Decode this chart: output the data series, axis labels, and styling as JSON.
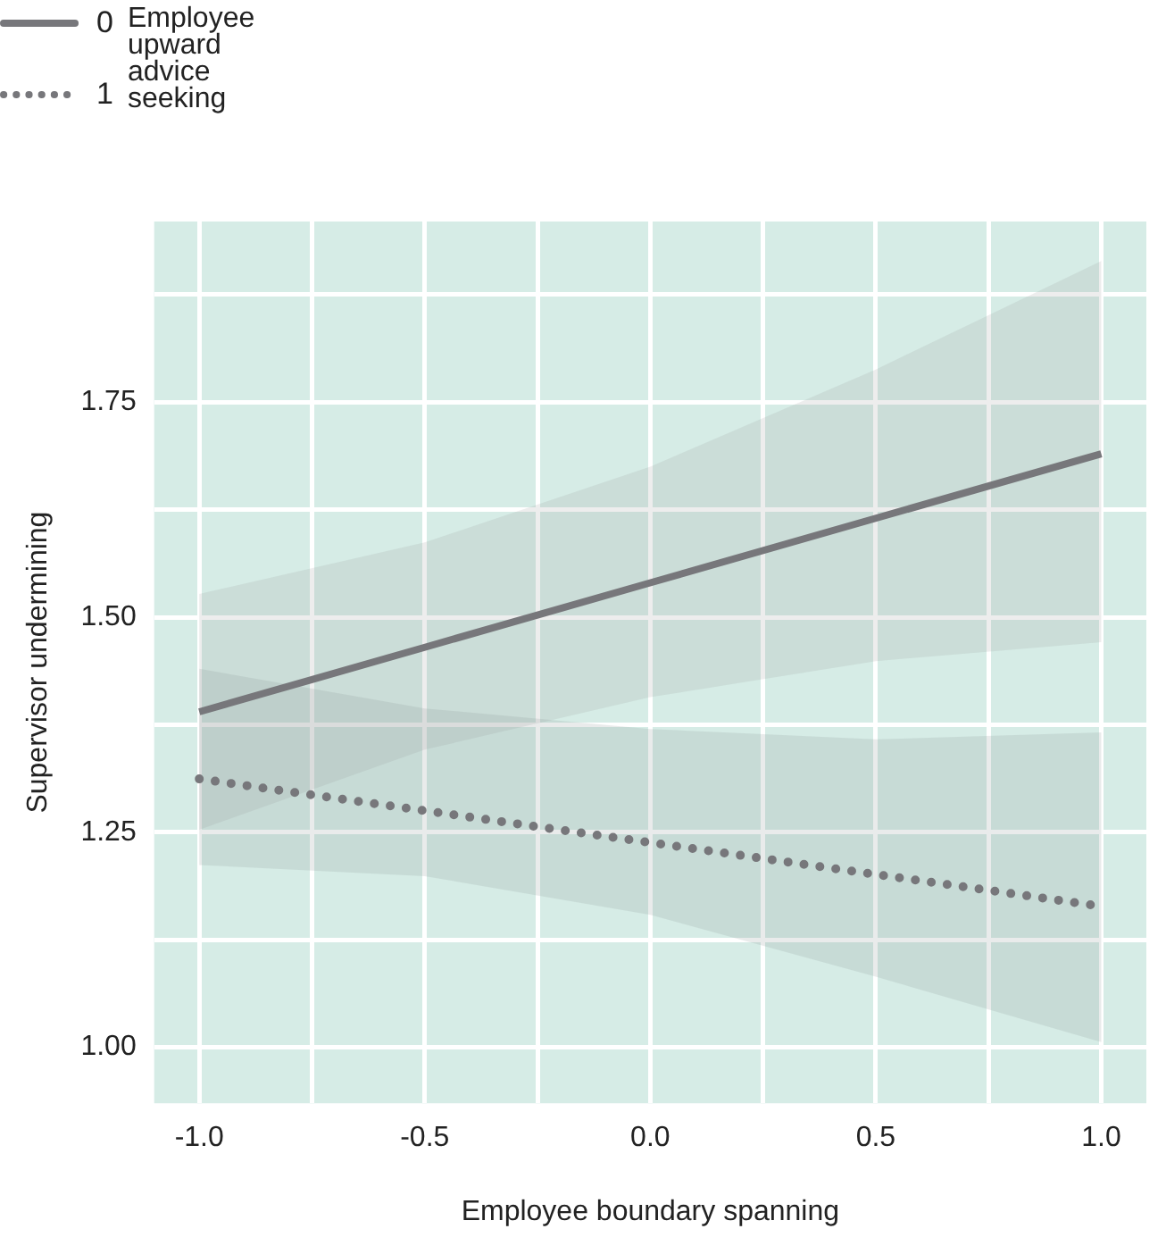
{
  "chart_data": {
    "type": "line",
    "xlabel": "Employee boundary spanning",
    "ylabel": "Supervisor undermining",
    "legend_title": "Employee upward advice seeking",
    "legend": "top left",
    "grid": true,
    "marker": "none",
    "x": [
      -1,
      -0.5,
      0,
      0.5,
      1
    ],
    "xlim": [
      -1.1,
      1.1
    ],
    "xticks": [
      {
        "value": -1,
        "label": "-1.0"
      },
      {
        "value": -0.75,
        "label": null
      },
      {
        "value": -0.5,
        "label": "-0.5"
      },
      {
        "value": -0.25,
        "label": null
      },
      {
        "value": 0,
        "label": "0.0"
      },
      {
        "value": 0.25,
        "label": null
      },
      {
        "value": 0.5,
        "label": "0.5"
      },
      {
        "value": 0.75,
        "label": null
      },
      {
        "value": 1,
        "label": "1.0"
      }
    ],
    "ylim": [
      0.935,
      1.96
    ],
    "yticks": [
      {
        "value": 1,
        "label": "1.00"
      },
      {
        "value": 1.125,
        "label": null
      },
      {
        "value": 1.25,
        "label": "1.25"
      },
      {
        "value": 1.375,
        "label": null
      },
      {
        "value": 1.5,
        "label": "1.50"
      },
      {
        "value": 1.625,
        "label": null
      },
      {
        "value": 1.75,
        "label": "1.75"
      },
      {
        "value": 1.875,
        "label": null
      }
    ],
    "series": [
      {
        "name": "0",
        "color": "#77777b",
        "line_style": "solid",
        "values": [
          1.39,
          1.465,
          1.54,
          1.615,
          1.69
        ],
        "lower": [
          1.253,
          1.346,
          1.407,
          1.449,
          1.471
        ],
        "upper": [
          1.527,
          1.587,
          1.675,
          1.788,
          1.914
        ]
      },
      {
        "name": "1",
        "color": "#77777b",
        "line_style": "dotted",
        "values": [
          1.312,
          1.275,
          1.238,
          1.201,
          1.164
        ],
        "lower": [
          1.212,
          1.199,
          1.154,
          1.082,
          1.006
        ],
        "upper": [
          1.44,
          1.394,
          1.37,
          1.358,
          1.366
        ]
      }
    ]
  }
}
